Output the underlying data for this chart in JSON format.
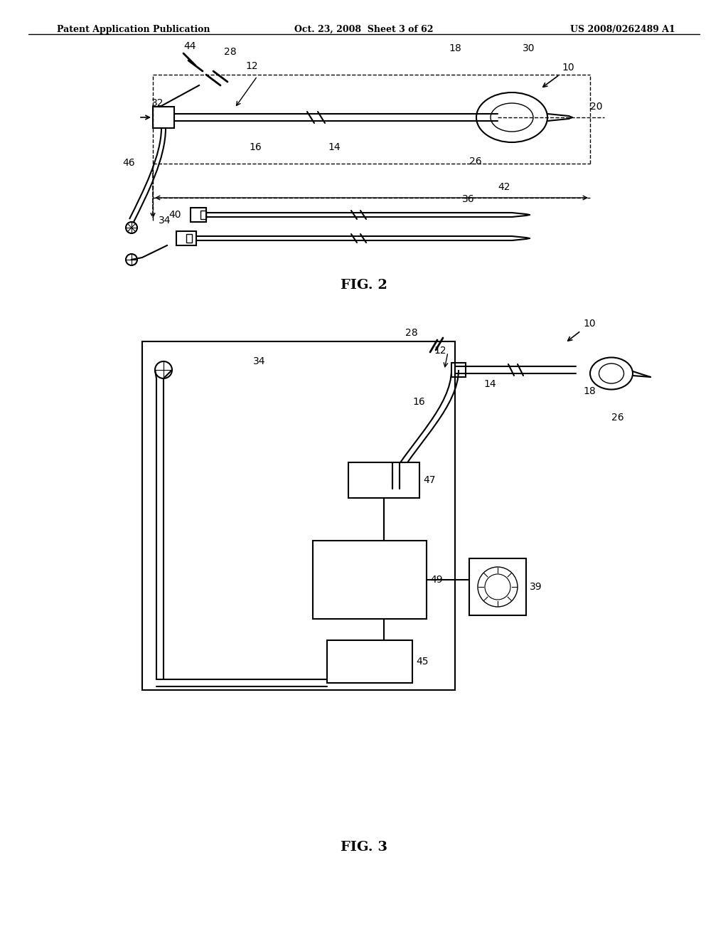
{
  "bg_color": "#ffffff",
  "line_color": "#000000",
  "header_left": "Patent Application Publication",
  "header_center": "Oct. 23, 2008  Sheet 3 of 62",
  "header_right": "US 2008/0262489 A1",
  "fig2_label": "FIG. 2",
  "fig3_label": "FIG. 3"
}
